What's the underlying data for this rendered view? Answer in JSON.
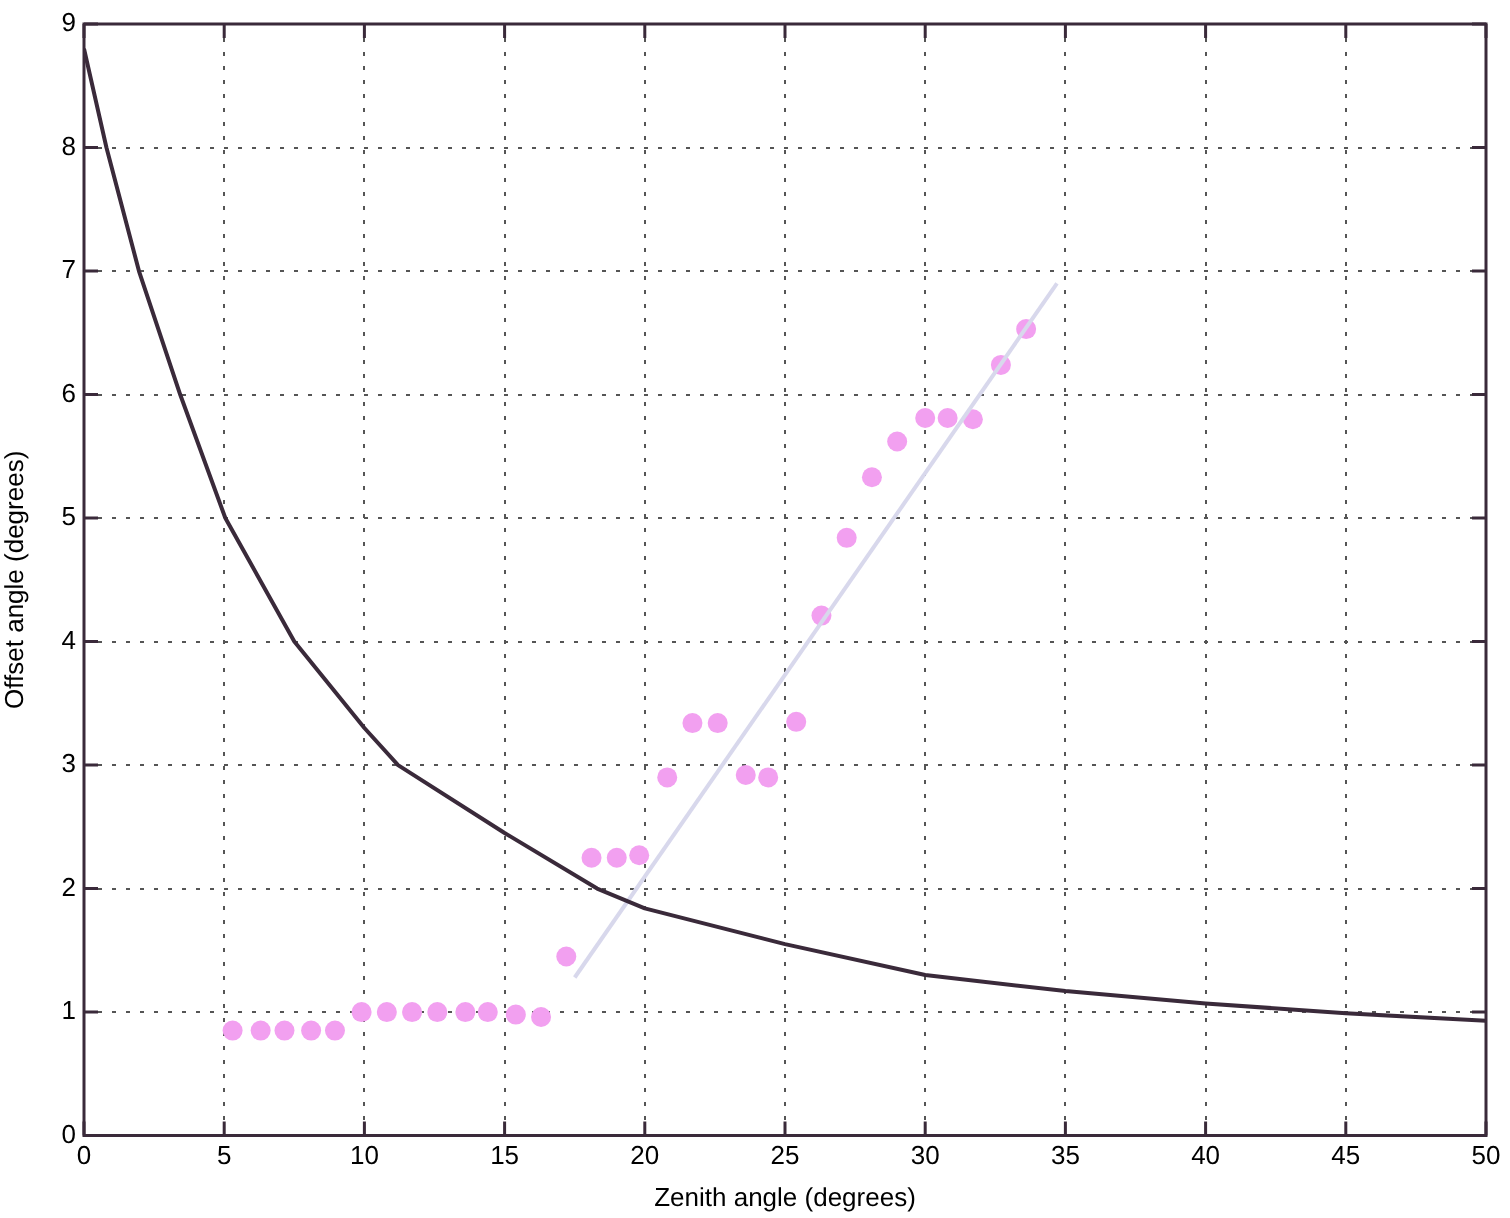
{
  "chart_data": {
    "type": "scatter",
    "xlabel": "Zenith angle (degrees)",
    "ylabel": "Offset angle (degrees)",
    "xlim": [
      0,
      50
    ],
    "xticks": [
      0,
      5,
      10,
      15,
      20,
      25,
      30,
      35,
      40,
      45,
      50
    ],
    "ylim": [
      0,
      9
    ],
    "yticks": [
      0,
      1,
      2,
      3,
      4,
      5,
      6,
      7,
      8,
      9
    ],
    "grid": true,
    "marker": "circle",
    "legend": false,
    "series": [
      {
        "type": "line",
        "color": "#3a2a3a",
        "marker": "none",
        "x": [
          0,
          0.8,
          1.96,
          3.43,
          5.04,
          7.5,
          10,
          11.2,
          15,
          18.3,
          20,
          25,
          30,
          35,
          40,
          45,
          50
        ],
        "values": [
          8.8,
          8,
          7,
          6,
          5,
          4,
          3.3,
          3,
          2.45,
          2,
          1.84,
          1.55,
          1.3,
          1.17,
          1.07,
          0.99,
          0.93
        ]
      },
      {
        "type": "line",
        "color": "#d8d8ec",
        "marker": "none",
        "x": [
          17.5,
          34.7
        ],
        "values": [
          1.28,
          6.9
        ]
      },
      {
        "type": "scatter",
        "color": "#f2a0f0",
        "x": [
          5.3,
          6.3,
          7.15,
          8.1,
          8.95,
          9.9,
          10.8,
          11.7,
          12.6,
          13.6,
          14.4,
          15.4,
          16.3,
          17.2,
          18.1,
          19.0,
          19.8,
          20.8,
          21.7,
          22.6,
          23.6,
          24.4,
          25.4,
          26.3,
          27.2,
          28.1,
          29.0,
          30.0,
          30.8,
          31.7,
          32.7,
          33.6
        ],
        "values": [
          0.85,
          0.85,
          0.85,
          0.85,
          0.85,
          1.0,
          1.0,
          1.0,
          1.0,
          1.0,
          1.0,
          0.98,
          0.96,
          1.45,
          2.25,
          2.25,
          2.27,
          2.9,
          3.34,
          3.34,
          2.92,
          2.9,
          3.35,
          4.21,
          4.84,
          5.33,
          5.62,
          5.81,
          5.81,
          5.8,
          6.24,
          6.53
        ]
      }
    ]
  }
}
